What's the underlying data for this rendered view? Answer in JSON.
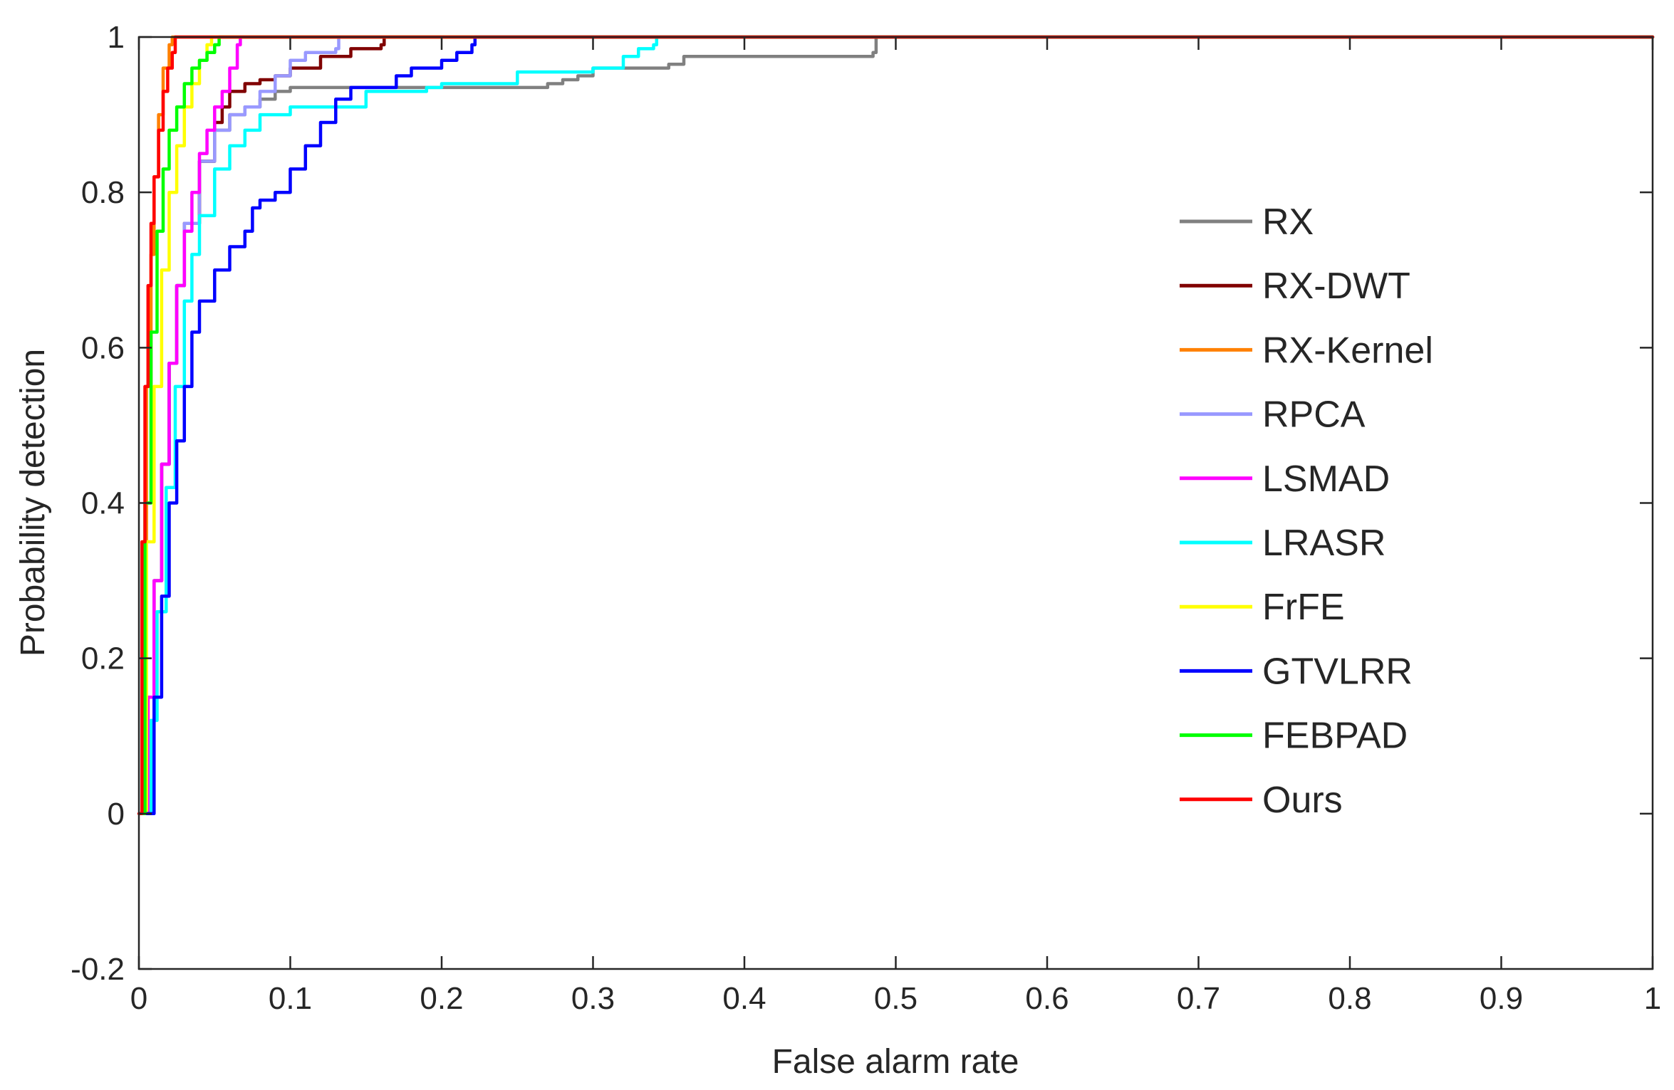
{
  "chart_data": {
    "type": "line",
    "title": "",
    "xlabel": "False alarm rate",
    "ylabel": "Probability detection",
    "xlim": [
      0,
      1
    ],
    "ylim": [
      -0.2,
      1
    ],
    "xticks": [
      "0",
      "0.1",
      "0.2",
      "0.3",
      "0.4",
      "0.5",
      "0.6",
      "0.7",
      "0.8",
      "0.9",
      "1"
    ],
    "yticks": [
      "-0.2",
      "0",
      "0.2",
      "0.4",
      "0.6",
      "0.8",
      "1"
    ],
    "grid": false,
    "legend_position": "right",
    "series": [
      {
        "name": "RX",
        "color": "#808080",
        "x": [
          0.002,
          0.006,
          0.01,
          0.015,
          0.02,
          0.025,
          0.03,
          0.04,
          0.05,
          0.06,
          0.07,
          0.08,
          0.09,
          0.1,
          0.15,
          0.2,
          0.25,
          0.27,
          0.28,
          0.29,
          0.3,
          0.33,
          0.35,
          0.36,
          0.42,
          0.485,
          0.487,
          1.0
        ],
        "y": [
          0.0,
          0.15,
          0.3,
          0.45,
          0.58,
          0.68,
          0.76,
          0.84,
          0.88,
          0.9,
          0.91,
          0.92,
          0.93,
          0.935,
          0.935,
          0.935,
          0.935,
          0.94,
          0.945,
          0.95,
          0.96,
          0.96,
          0.965,
          0.975,
          0.975,
          0.98,
          1.0,
          1.0
        ]
      },
      {
        "name": "RX-DWT",
        "color": "#800000",
        "x": [
          0.002,
          0.006,
          0.01,
          0.015,
          0.02,
          0.025,
          0.03,
          0.04,
          0.05,
          0.055,
          0.06,
          0.07,
          0.08,
          0.09,
          0.1,
          0.12,
          0.14,
          0.16,
          0.162,
          1.0
        ],
        "y": [
          0.0,
          0.15,
          0.3,
          0.45,
          0.58,
          0.68,
          0.76,
          0.84,
          0.89,
          0.91,
          0.93,
          0.94,
          0.945,
          0.95,
          0.96,
          0.975,
          0.985,
          0.99,
          1.0,
          1.0
        ]
      },
      {
        "name": "RX-Kernel",
        "color": "#ff8000",
        "x": [
          0.001,
          0.003,
          0.005,
          0.008,
          0.01,
          0.013,
          0.016,
          0.02,
          0.022,
          1.0
        ],
        "y": [
          0.0,
          0.35,
          0.55,
          0.72,
          0.82,
          0.9,
          0.96,
          0.99,
          1.0,
          1.0
        ]
      },
      {
        "name": "RPCA",
        "color": "#9999ff",
        "x": [
          0.002,
          0.006,
          0.01,
          0.015,
          0.02,
          0.025,
          0.03,
          0.04,
          0.05,
          0.06,
          0.07,
          0.08,
          0.09,
          0.1,
          0.11,
          0.13,
          0.132,
          1.0
        ],
        "y": [
          0.0,
          0.15,
          0.3,
          0.45,
          0.58,
          0.68,
          0.76,
          0.84,
          0.88,
          0.9,
          0.91,
          0.93,
          0.95,
          0.97,
          0.98,
          0.985,
          1.0,
          1.0
        ]
      },
      {
        "name": "LSMAD",
        "color": "#ff00ff",
        "x": [
          0.002,
          0.006,
          0.01,
          0.015,
          0.02,
          0.025,
          0.03,
          0.035,
          0.04,
          0.045,
          0.05,
          0.055,
          0.06,
          0.065,
          0.067,
          1.0
        ],
        "y": [
          0.0,
          0.15,
          0.3,
          0.45,
          0.58,
          0.68,
          0.75,
          0.8,
          0.85,
          0.88,
          0.91,
          0.93,
          0.96,
          0.99,
          1.0,
          1.0
        ]
      },
      {
        "name": "LRASR",
        "color": "#00ffff",
        "x": [
          0.003,
          0.008,
          0.012,
          0.018,
          0.024,
          0.03,
          0.035,
          0.04,
          0.05,
          0.06,
          0.07,
          0.08,
          0.1,
          0.15,
          0.19,
          0.2,
          0.25,
          0.3,
          0.32,
          0.33,
          0.34,
          0.342,
          1.0
        ],
        "y": [
          0.0,
          0.12,
          0.26,
          0.42,
          0.55,
          0.66,
          0.72,
          0.77,
          0.83,
          0.86,
          0.88,
          0.9,
          0.91,
          0.93,
          0.935,
          0.94,
          0.955,
          0.96,
          0.975,
          0.985,
          0.99,
          1.0,
          1.0
        ]
      },
      {
        "name": "FrFE",
        "color": "#ffff00",
        "x": [
          0.001,
          0.005,
          0.01,
          0.015,
          0.02,
          0.025,
          0.03,
          0.035,
          0.04,
          0.045,
          0.048,
          1.0
        ],
        "y": [
          0.0,
          0.35,
          0.55,
          0.7,
          0.8,
          0.86,
          0.91,
          0.94,
          0.97,
          0.99,
          1.0,
          1.0
        ]
      },
      {
        "name": "GTVLRR",
        "color": "#0000ff",
        "x": [
          0.005,
          0.01,
          0.015,
          0.02,
          0.025,
          0.03,
          0.035,
          0.04,
          0.05,
          0.06,
          0.07,
          0.075,
          0.08,
          0.09,
          0.1,
          0.11,
          0.12,
          0.13,
          0.14,
          0.16,
          0.17,
          0.18,
          0.2,
          0.21,
          0.22,
          0.222,
          1.0
        ],
        "y": [
          0.0,
          0.15,
          0.28,
          0.4,
          0.48,
          0.55,
          0.62,
          0.66,
          0.7,
          0.73,
          0.75,
          0.78,
          0.79,
          0.8,
          0.83,
          0.86,
          0.89,
          0.92,
          0.935,
          0.935,
          0.95,
          0.96,
          0.97,
          0.98,
          0.99,
          1.0,
          1.0
        ]
      },
      {
        "name": "FEBPAD",
        "color": "#00ff00",
        "x": [
          0.001,
          0.004,
          0.008,
          0.012,
          0.016,
          0.02,
          0.025,
          0.03,
          0.035,
          0.04,
          0.045,
          0.05,
          0.053,
          1.0
        ],
        "y": [
          0.0,
          0.4,
          0.62,
          0.75,
          0.83,
          0.88,
          0.91,
          0.94,
          0.96,
          0.97,
          0.98,
          0.99,
          1.0,
          1.0
        ]
      },
      {
        "name": "Ours",
        "color": "#ff0000",
        "x": [
          0.0,
          0.002,
          0.004,
          0.006,
          0.008,
          0.01,
          0.013,
          0.016,
          0.019,
          0.022,
          0.024,
          1.0
        ],
        "y": [
          0.0,
          0.35,
          0.55,
          0.68,
          0.76,
          0.82,
          0.88,
          0.93,
          0.96,
          0.98,
          1.0,
          1.0
        ]
      }
    ]
  }
}
